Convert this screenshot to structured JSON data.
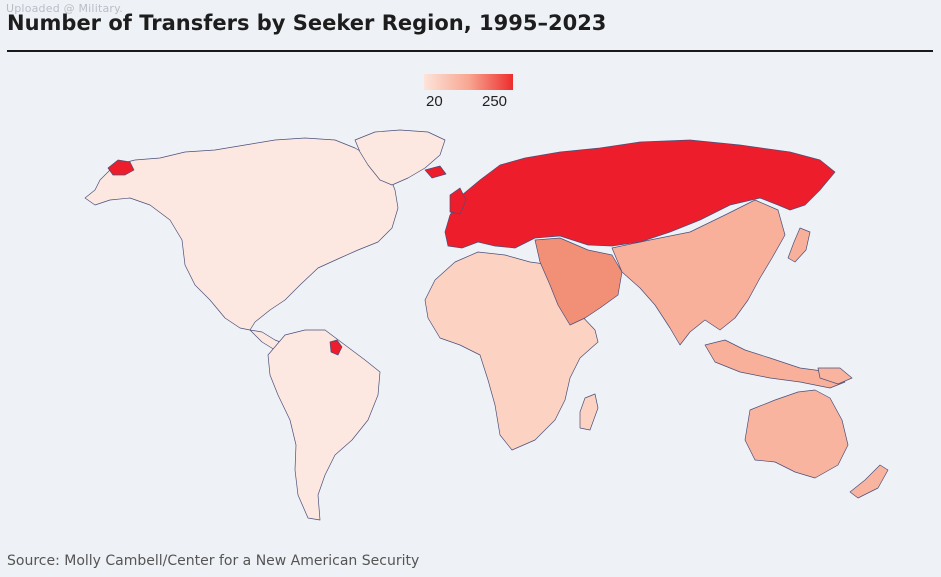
{
  "watermark": "Uploaded @ Military.",
  "title": "Number of Transfers by Seeker Region, 1995–2023",
  "legend": {
    "min_label": "20",
    "max_label": "250",
    "min": 20,
    "max": 250,
    "color_low": "#fde4da",
    "color_high": "#ee2d2d"
  },
  "source": "Source: Molly Cambell/Center for a New American Security",
  "colors": {
    "background": "#eef1f5",
    "border": "#4a4f7a",
    "americas": "#fde8e1",
    "africa": "#fcd2c3",
    "asia": "#f8b09b",
    "oceania": "#f9b4a0",
    "middle_east": "#f28f77",
    "europe": "#ee1d2b"
  }
}
